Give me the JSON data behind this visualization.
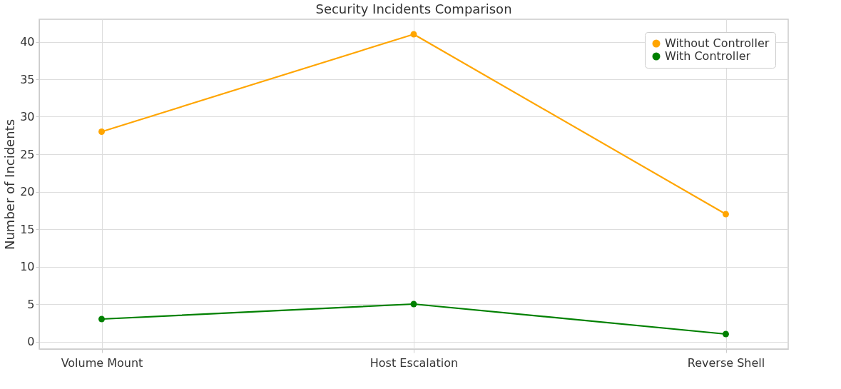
{
  "chart_data": {
    "type": "line",
    "title": "Security Incidents Comparison",
    "ylabel": "Number of Incidents",
    "categories": [
      "Volume Mount",
      "Host Escalation",
      "Reverse Shell"
    ],
    "series": [
      {
        "name": "Without Controller",
        "color": "#ffa500",
        "values": [
          28,
          41,
          17
        ]
      },
      {
        "name": "With Controller",
        "color": "#008000",
        "values": [
          3,
          5,
          1
        ]
      }
    ],
    "ylim": [
      -1,
      43
    ],
    "yticks": [
      0,
      5,
      10,
      15,
      20,
      25,
      30,
      35,
      40
    ],
    "grid": true,
    "legend": "top right",
    "marker": "circle",
    "line_style": "solid"
  }
}
